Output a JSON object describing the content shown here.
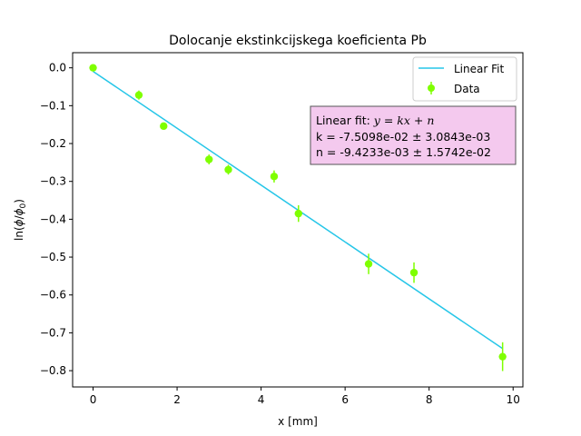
{
  "chart_data": {
    "type": "scatter",
    "title": "Dolocanje ekstinkcijskega koeficienta Pb",
    "xlabel": "x [mm]",
    "ylabel": "ln(ϕ/ϕ₀)",
    "xlim": [
      -0.487,
      10.233
    ],
    "ylim": [
      -0.843,
      0.04
    ],
    "xticks": [
      0,
      2,
      4,
      6,
      8,
      10
    ],
    "yticks": [
      0.0,
      -0.1,
      -0.2,
      -0.3,
      -0.4,
      -0.5,
      -0.6,
      -0.7,
      -0.8
    ],
    "xtick_labels": [
      "0",
      "2",
      "4",
      "6",
      "8",
      "10"
    ],
    "ytick_labels": [
      "0.0",
      "−0.1",
      "−0.2",
      "−0.3",
      "−0.4",
      "−0.5",
      "−0.6",
      "−0.7",
      "−0.8"
    ],
    "grid": false,
    "legend_position": "upper right",
    "series": [
      {
        "name": "Data",
        "kind": "errorbar",
        "color": "#7fff00",
        "points": [
          {
            "x": 0.0,
            "y": 0.0,
            "yerr": 0.0
          },
          {
            "x": 1.09,
            "y": -0.072,
            "yerr": 0.012
          },
          {
            "x": 1.68,
            "y": -0.154,
            "yerr": 0.008
          },
          {
            "x": 2.76,
            "y": -0.242,
            "yerr": 0.013
          },
          {
            "x": 3.22,
            "y": -0.269,
            "yerr": 0.013
          },
          {
            "x": 4.31,
            "y": -0.287,
            "yerr": 0.016
          },
          {
            "x": 4.89,
            "y": -0.385,
            "yerr": 0.022
          },
          {
            "x": 6.56,
            "y": -0.518,
            "yerr": 0.027
          },
          {
            "x": 7.64,
            "y": -0.541,
            "yerr": 0.027
          },
          {
            "x": 9.75,
            "y": -0.763,
            "yerr": 0.038
          }
        ]
      },
      {
        "name": "Linear Fit",
        "kind": "line",
        "color": "#26c6e8",
        "slope": -0.075098,
        "intercept": -0.0094233,
        "x_range": [
          0.0,
          9.75
        ]
      }
    ],
    "annotation": {
      "line1": "Linear fit: ",
      "line1_math": "y = kx + n",
      "line2": "k = -7.5098e-02 ± 3.0843e-03",
      "line3": "n = -9.4233e-03 ± 1.5742e-02",
      "background": "#f4c9ee",
      "border": "#555555"
    }
  }
}
